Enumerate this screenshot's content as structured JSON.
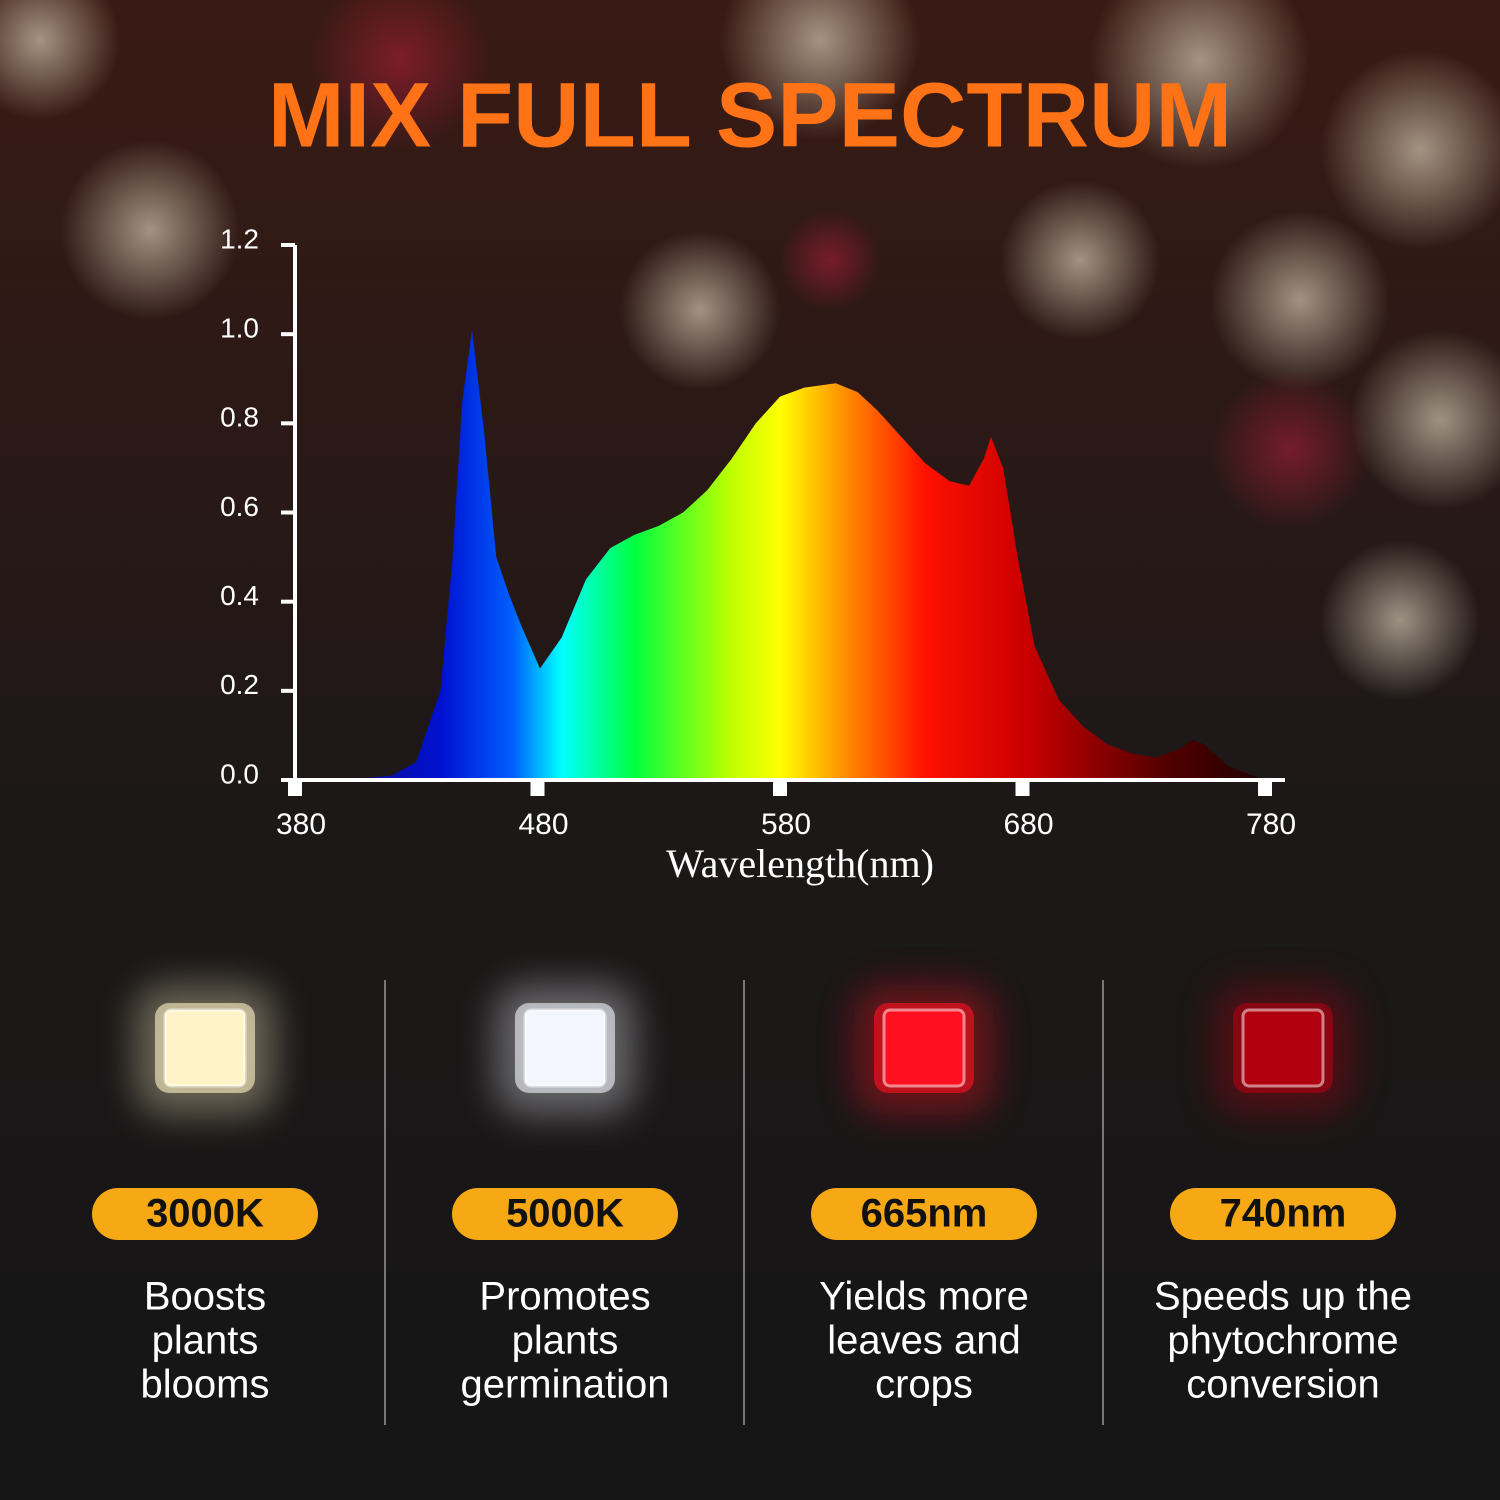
{
  "chart_data": {
    "type": "area",
    "title": "MIX FULL SPECTRUM",
    "x_label": "Wavelength(nm)",
    "x": [
      380,
      400,
      420,
      430,
      440,
      445,
      449,
      453,
      458,
      463,
      468,
      473,
      481,
      490,
      500,
      510,
      520,
      530,
      540,
      550,
      560,
      570,
      580,
      590,
      603,
      612,
      620,
      630,
      640,
      650,
      658,
      664,
      667,
      672,
      678,
      685,
      695,
      705,
      715,
      725,
      735,
      745,
      750,
      755,
      765,
      775,
      780
    ],
    "values": [
      0,
      0,
      0.01,
      0.04,
      0.2,
      0.5,
      0.85,
      1.01,
      0.78,
      0.5,
      0.42,
      0.35,
      0.25,
      0.32,
      0.45,
      0.52,
      0.55,
      0.57,
      0.6,
      0.65,
      0.72,
      0.8,
      0.86,
      0.88,
      0.89,
      0.87,
      0.83,
      0.77,
      0.71,
      0.67,
      0.66,
      0.72,
      0.77,
      0.7,
      0.5,
      0.3,
      0.18,
      0.12,
      0.08,
      0.06,
      0.05,
      0.07,
      0.09,
      0.08,
      0.03,
      0.01,
      0
    ],
    "xlim": [
      380,
      780
    ],
    "ylim": [
      0,
      1.2
    ],
    "xticks": [
      380,
      480,
      580,
      680,
      780
    ],
    "yticks": [
      {
        "value": 0,
        "label": "0.0"
      },
      0.2,
      0.4,
      0.6,
      0.8,
      {
        "value": 1,
        "label": "1.0"
      },
      1.2
    ]
  },
  "cards": [
    {
      "label": "3000K",
      "lines": [
        "Boosts",
        "plants",
        "blooms"
      ],
      "color": "#fff4c8"
    },
    {
      "label": "5000K",
      "lines": [
        "Promotes",
        "plants",
        "germination"
      ],
      "color": "#f4f6ff"
    },
    {
      "label": "665nm",
      "lines": [
        "Yields more",
        "leaves and",
        "crops"
      ],
      "color": "#ff1020"
    },
    {
      "label": "740nm",
      "lines": [
        "Speeds up the",
        "phytochrome",
        "conversion"
      ],
      "color": "#b00010"
    }
  ]
}
